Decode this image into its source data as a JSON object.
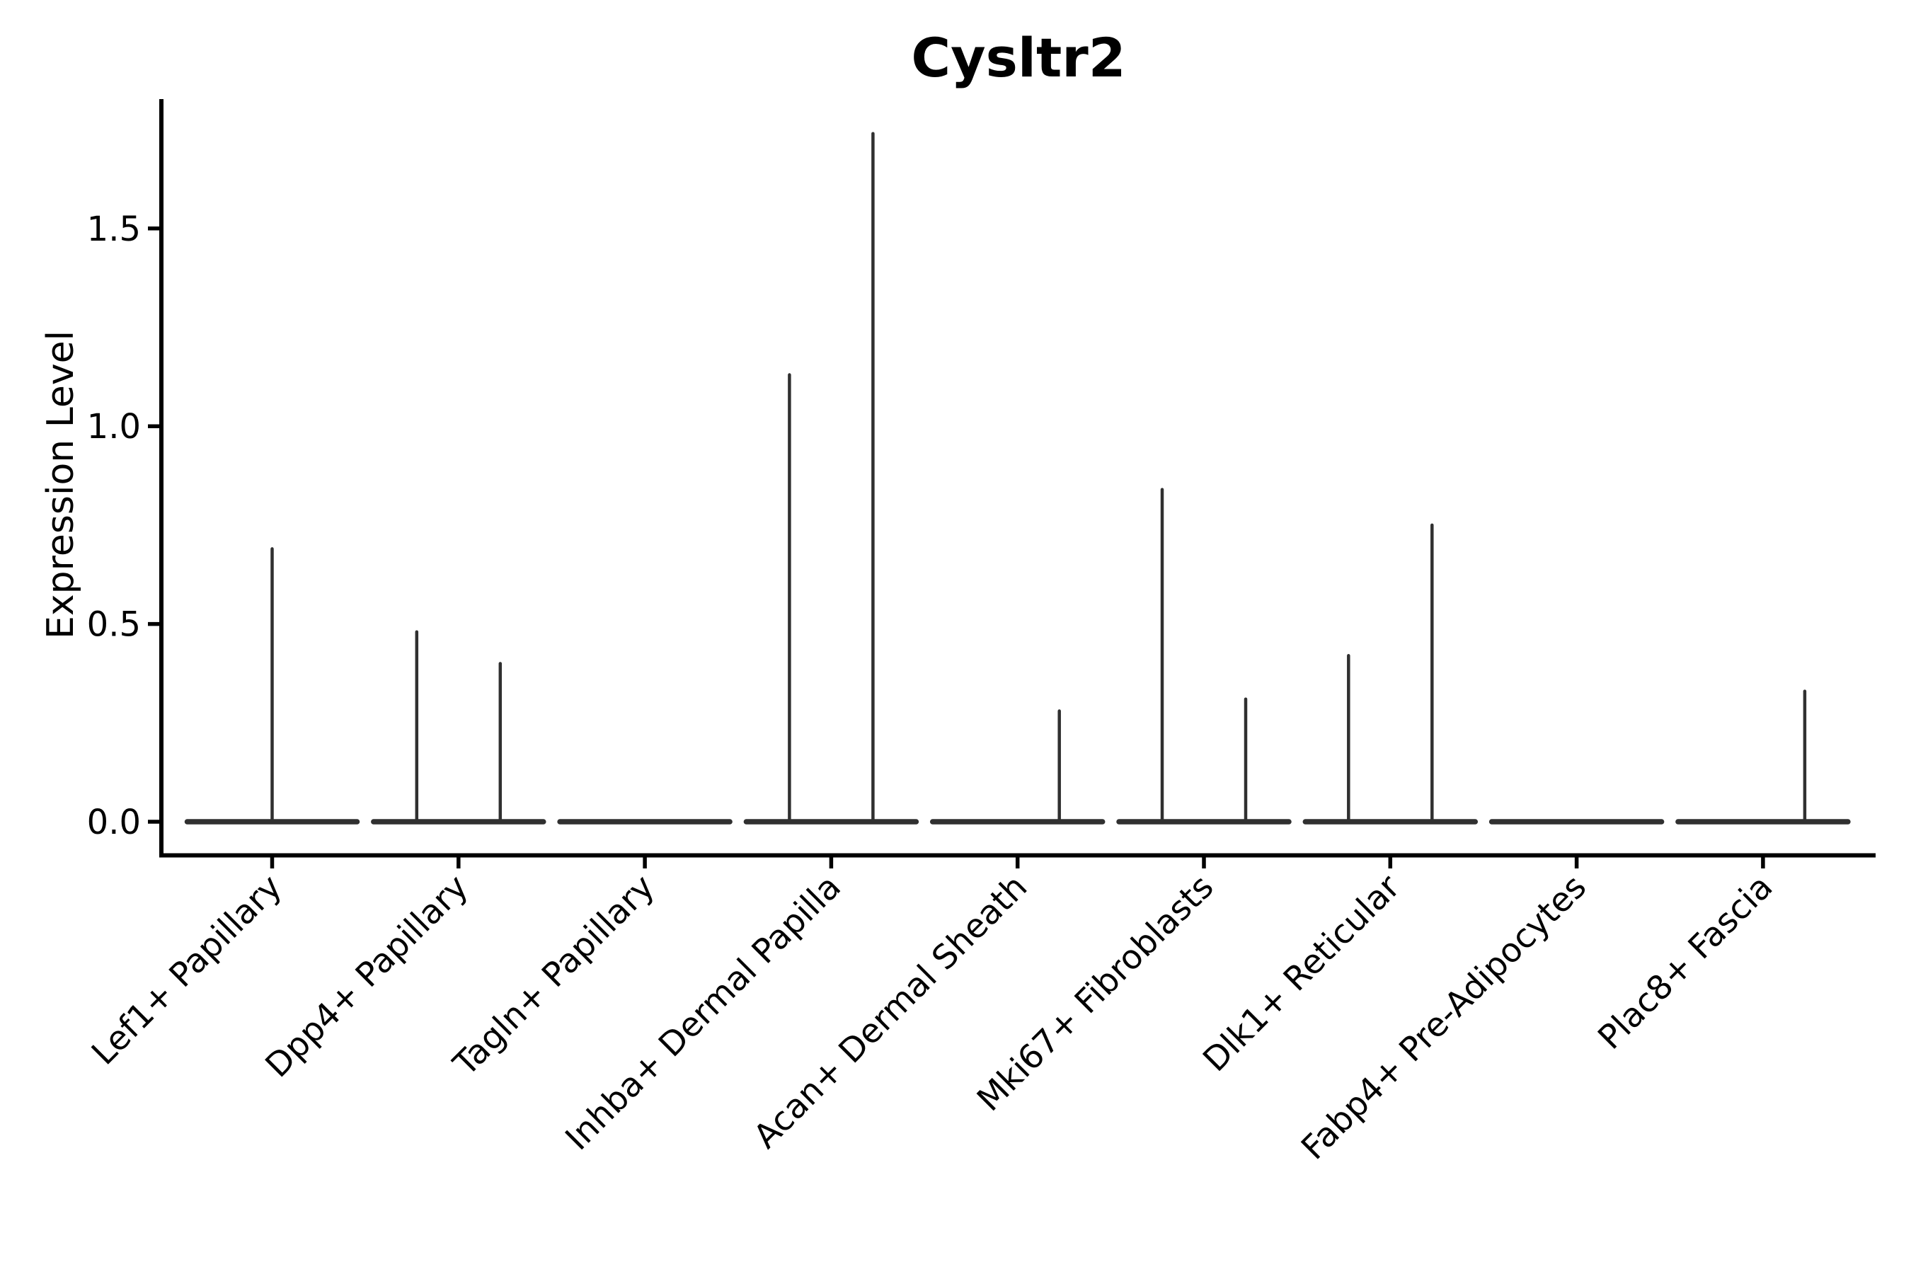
{
  "chart_data": {
    "type": "violin",
    "title": "Cysltr2",
    "ylabel": "Expression Level",
    "xlabel": "",
    "legend": "none",
    "grid": "off",
    "background": "#ffffff",
    "axis_color": "#000000",
    "violin_color": "#303030",
    "ylim": [
      -0.086,
      1.827
    ],
    "y_ticks": [
      {
        "value": 0.0,
        "label": "0.0"
      },
      {
        "value": 0.5,
        "label": "0.5"
      },
      {
        "value": 1.0,
        "label": "1.0"
      },
      {
        "value": 1.5,
        "label": "1.5"
      }
    ],
    "categories": [
      {
        "label": "Lef1+ Papillary",
        "spikes": [
          {
            "position": "center",
            "value": 0.69
          }
        ]
      },
      {
        "label": "Dpp4+ Papillary",
        "spikes": [
          {
            "position": "left",
            "value": 0.48
          },
          {
            "position": "right",
            "value": 0.4
          }
        ]
      },
      {
        "label": "Tagln+ Papillary",
        "spikes": []
      },
      {
        "label": "Inhba+ Dermal Papilla",
        "spikes": [
          {
            "position": "left",
            "value": 1.13
          },
          {
            "position": "right",
            "value": 1.74
          }
        ]
      },
      {
        "label": "Acan+ Dermal Sheath",
        "spikes": [
          {
            "position": "right",
            "value": 0.28
          }
        ]
      },
      {
        "label": "Mki67+ Fibroblasts",
        "spikes": [
          {
            "position": "left",
            "value": 0.84
          },
          {
            "position": "right",
            "value": 0.31
          }
        ]
      },
      {
        "label": "Dlk1+ Reticular",
        "spikes": [
          {
            "position": "left",
            "value": 0.42
          },
          {
            "position": "right",
            "value": 0.75
          }
        ]
      },
      {
        "label": "Fabp4+ Pre-Adipocytes",
        "spikes": []
      },
      {
        "label": "Plac8+ Fascia",
        "spikes": [
          {
            "position": "right",
            "value": 0.33
          }
        ]
      }
    ]
  }
}
